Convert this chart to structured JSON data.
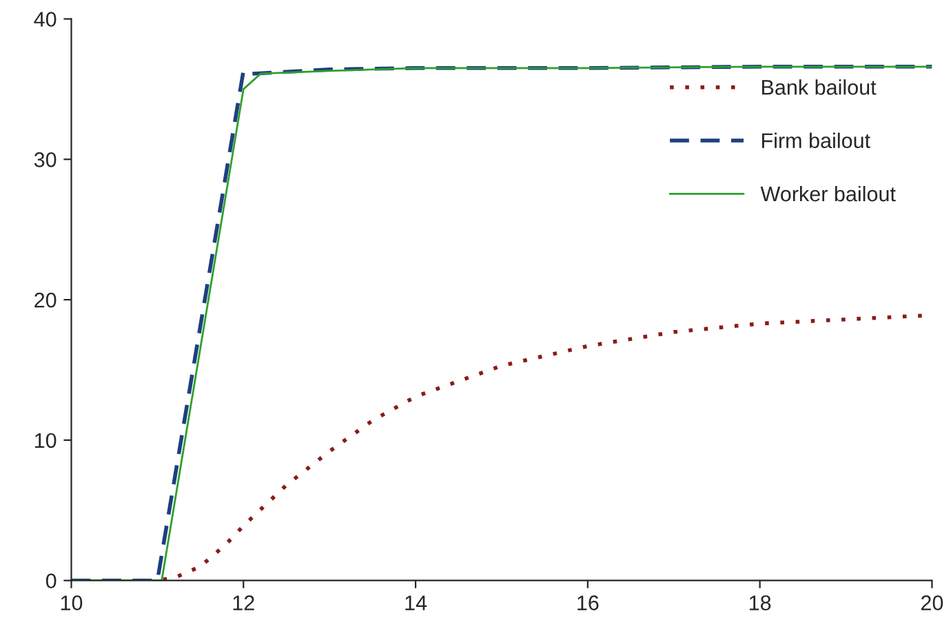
{
  "chart_data": {
    "type": "line",
    "xlim": [
      10,
      20
    ],
    "ylim": [
      0,
      40
    ],
    "xticks": [
      10,
      12,
      14,
      16,
      18,
      20
    ],
    "yticks": [
      0,
      10,
      20,
      30,
      40
    ],
    "grid": false,
    "legend": "right",
    "series": [
      {
        "name": "Bank bailout",
        "color": "#8b1a1a",
        "line_style": "dotted",
        "x": [
          10,
          11,
          11.2,
          11.5,
          11.8,
          12,
          12.5,
          13,
          13.5,
          14,
          15,
          16,
          17,
          18,
          19,
          20
        ],
        "values": [
          0,
          0,
          0.2,
          1.0,
          2.6,
          3.9,
          6.8,
          9.2,
          11.4,
          13.1,
          15.3,
          16.7,
          17.7,
          18.3,
          18.6,
          18.9
        ]
      },
      {
        "name": "Firm bailout",
        "color": "#1f3f7f",
        "line_style": "dashed",
        "x": [
          10,
          11,
          12,
          12.1,
          13,
          14,
          16,
          18,
          20
        ],
        "values": [
          0,
          0,
          36.3,
          36.1,
          36.4,
          36.5,
          36.5,
          36.6,
          36.6
        ]
      },
      {
        "name": "Worker bailout",
        "color": "#2ca02c",
        "line_style": "solid",
        "x": [
          10,
          11.05,
          12,
          12.2,
          13,
          14,
          16,
          18,
          20
        ],
        "values": [
          0,
          0,
          35.0,
          36.1,
          36.3,
          36.5,
          36.5,
          36.6,
          36.6
        ]
      }
    ]
  }
}
